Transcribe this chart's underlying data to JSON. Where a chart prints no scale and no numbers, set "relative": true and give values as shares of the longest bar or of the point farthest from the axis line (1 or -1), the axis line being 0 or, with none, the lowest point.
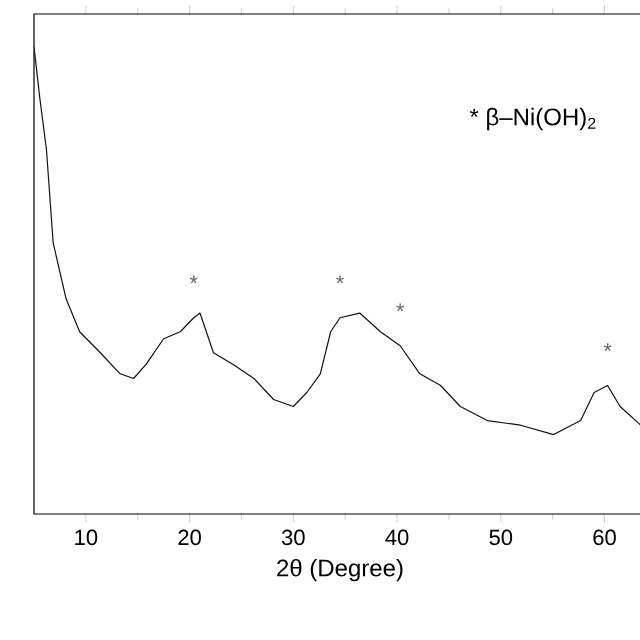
{
  "chart_data": {
    "type": "line",
    "relative": true,
    "xlabel": "2θ (Degree)",
    "xlim": [
      5,
      64
    ],
    "xticks": [
      10,
      20,
      30,
      40,
      50,
      60
    ],
    "x": [
      5.0,
      5.56,
      6.2,
      6.85,
      8.1,
      9.4,
      11.4,
      13.3,
      14.6,
      15.8,
      17.5,
      19.1,
      20.4,
      21.0,
      22.3,
      24.2,
      26.2,
      28.1,
      30.0,
      31.3,
      32.6,
      33.6,
      34.5,
      36.4,
      38.4,
      40.3,
      42.2,
      44.2,
      46.1,
      48.7,
      51.9,
      55.1,
      57.7,
      59.0,
      60.3,
      61.5,
      63.5
    ],
    "series": [
      {
        "color": "#111111",
        "values": [
          1.0,
          0.89,
          0.78,
          0.58,
          0.46,
          0.39,
          0.345,
          0.3,
          0.29,
          0.32,
          0.375,
          0.39,
          0.42,
          0.43,
          0.345,
          0.32,
          0.29,
          0.245,
          0.23,
          0.26,
          0.3,
          0.39,
          0.42,
          0.43,
          0.39,
          0.36,
          0.3,
          0.275,
          0.23,
          0.2,
          0.19,
          0.17,
          0.2,
          0.26,
          0.275,
          0.23,
          0.19
        ]
      }
    ],
    "annotations": [
      "* β–Ni(OH)$_{2}$",
      {
        "text": "*",
        "x": 20.4,
        "y": 0.42
      },
      {
        "text": "*",
        "x": 34.5,
        "y": 0.42
      },
      {
        "text": "*",
        "x": 40.3,
        "y": 0.36
      },
      {
        "text": "*",
        "x": 60.3,
        "y": 0.275
      }
    ]
  }
}
